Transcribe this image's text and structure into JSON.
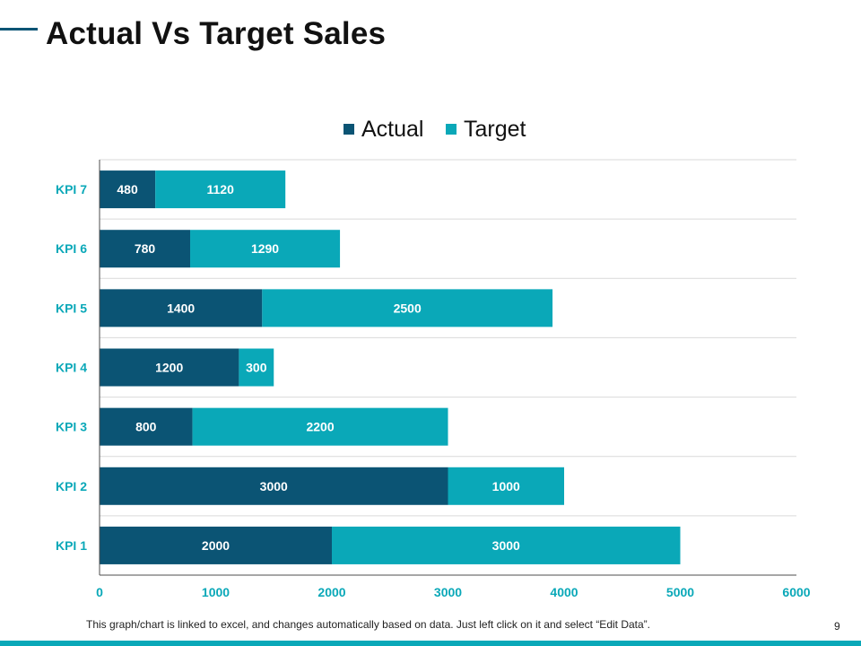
{
  "slide": {
    "title": "Actual Vs Target Sales",
    "footer_note": "This graph/chart is linked to excel, and changes automatically based on data. Just left click on it and select “Edit Data”.",
    "page_number": "9"
  },
  "colors": {
    "actual": "#0b5474",
    "target": "#0aa8b8",
    "accent": "#0b5474",
    "bar_label": "#ffffff",
    "axis_label": "#0aa8b8",
    "gridline": "#d9d9d9",
    "axis_line": "#4d4d4d"
  },
  "chart_data": {
    "type": "bar",
    "orientation": "horizontal",
    "stacked": true,
    "title": "",
    "xlabel": "",
    "ylabel": "",
    "categories": [
      "KPI 1",
      "KPI 2",
      "KPI 3",
      "KPI 4",
      "KPI 5",
      "KPI 6",
      "KPI 7"
    ],
    "series": [
      {
        "name": "Actual",
        "values": [
          2000,
          3000,
          800,
          1200,
          1400,
          780,
          480
        ]
      },
      {
        "name": "Target",
        "values": [
          3000,
          1000,
          2200,
          300,
          2500,
          1290,
          1120
        ]
      }
    ],
    "xlim": [
      0,
      6000
    ],
    "x_ticks": [
      0,
      1000,
      2000,
      3000,
      4000,
      5000,
      6000
    ],
    "data_labels": true,
    "grid": "horizontal",
    "legend": "top-center"
  }
}
